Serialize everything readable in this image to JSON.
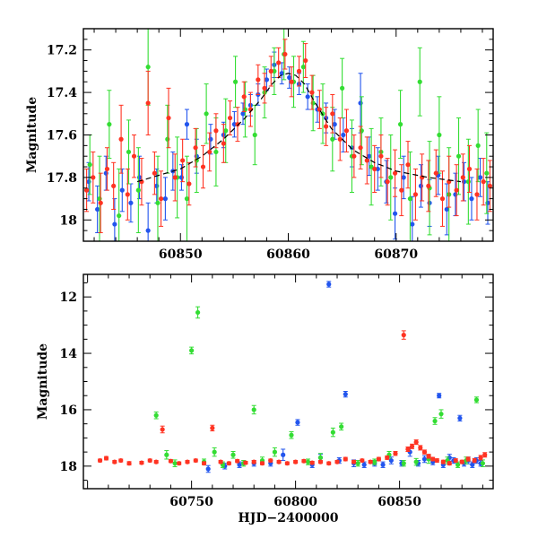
{
  "chart_data": [
    {
      "type": "scatter",
      "title": "",
      "xlabel": "",
      "ylabel": "Magnitude",
      "xlim": [
        60841,
        60879
      ],
      "ylim": [
        18.1,
        17.1
      ],
      "y_inverted": true,
      "grid": false,
      "xticks": [
        60850,
        60860,
        60870
      ],
      "yticks": [
        17.2,
        17.4,
        17.6,
        17.8,
        18
      ],
      "ytick_labels": [
        "17.2",
        "17.4",
        "17.6",
        "17.8",
        "18"
      ],
      "model_curve": {
        "style": "dashed",
        "color": "#000000",
        "x": [
          60846,
          60850,
          60852,
          60854,
          60856,
          60857.5,
          60858.5,
          60859.3,
          60860,
          60860.7,
          60861.5,
          60862.5,
          60864,
          60866,
          60868,
          60870,
          60873,
          60876
        ],
        "y": [
          17.82,
          17.76,
          17.7,
          17.62,
          17.52,
          17.43,
          17.36,
          17.32,
          17.31,
          17.32,
          17.36,
          17.45,
          17.57,
          17.67,
          17.73,
          17.77,
          17.8,
          17.82
        ]
      },
      "series": [
        {
          "color": "#2255ee",
          "x": [
            60841.5,
            60842.3,
            60843.1,
            60843.9,
            60844.6,
            60845.4,
            60846.2,
            60847,
            60847.8,
            60848.6,
            60849.3,
            60850.1,
            60850.6,
            60851.5,
            60852.8,
            60854,
            60855,
            60855.8,
            60856.5,
            60857.2,
            60858,
            60858.7,
            60859.4,
            60860.1,
            60861,
            60861.8,
            60862.7,
            60863.5,
            60864.3,
            60865.1,
            60865.9,
            60866.7,
            60867.5,
            60868.3,
            60869.1,
            60869.9,
            60870.7,
            60871.5,
            60872.3,
            60873.1,
            60873.9,
            60874.7,
            60875.5,
            60876.3,
            60877,
            60877.8,
            60878.5
          ],
          "y": [
            17.82,
            17.95,
            17.78,
            18.02,
            17.86,
            17.92,
            17.8,
            18.05,
            17.84,
            17.9,
            17.77,
            17.8,
            17.55,
            17.7,
            17.62,
            17.6,
            17.55,
            17.5,
            17.46,
            17.41,
            17.34,
            17.27,
            17.31,
            17.33,
            17.36,
            17.42,
            17.48,
            17.52,
            17.55,
            17.6,
            17.66,
            17.45,
            17.7,
            17.76,
            17.82,
            17.97,
            17.8,
            18.02,
            17.84,
            17.92,
            17.79,
            17.95,
            17.88,
            17.82,
            17.9,
            17.8,
            17.92
          ],
          "err": [
            0.09,
            0.11,
            0.08,
            0.12,
            0.1,
            0.09,
            0.1,
            0.13,
            0.08,
            0.1,
            0.09,
            0.06,
            0.07,
            0.08,
            0.07,
            0.06,
            0.06,
            0.05,
            0.05,
            0.05,
            0.05,
            0.06,
            0.05,
            0.05,
            0.05,
            0.06,
            0.06,
            0.07,
            0.07,
            0.08,
            0.09,
            0.14,
            0.09,
            0.1,
            0.1,
            0.12,
            0.1,
            0.13,
            0.1,
            0.11,
            0.09,
            0.12,
            0.1,
            0.09,
            0.1,
            0.09,
            0.1
          ]
        },
        {
          "color": "#33dd33",
          "x": [
            60841.6,
            60842.5,
            60843.4,
            60844.3,
            60845.2,
            60846.1,
            60847,
            60847.9,
            60848.8,
            60849.7,
            60850.6,
            60851.5,
            60852.4,
            60853.3,
            60854.2,
            60855.1,
            60856,
            60856.9,
            60857.8,
            60858.7,
            60859.6,
            60860.5,
            60861.4,
            60862.3,
            60863.2,
            60864.1,
            60865,
            60865.9,
            60866.8,
            60867.7,
            60868.6,
            60869.5,
            60870.4,
            60871.3,
            60872.2,
            60873.1,
            60874,
            60874.9,
            60875.8,
            60876.7,
            60877.6,
            60878.4
          ],
          "y": [
            17.74,
            17.9,
            17.55,
            17.98,
            17.68,
            17.86,
            17.28,
            17.92,
            17.62,
            17.8,
            17.9,
            17.72,
            17.5,
            17.68,
            17.58,
            17.35,
            17.48,
            17.6,
            17.4,
            17.3,
            17.22,
            17.35,
            17.28,
            17.45,
            17.5,
            17.62,
            17.38,
            17.7,
            17.58,
            17.75,
            17.68,
            17.8,
            17.55,
            17.9,
            17.35,
            17.85,
            17.6,
            17.88,
            17.7,
            17.82,
            17.65,
            17.78
          ],
          "err": [
            0.14,
            0.2,
            0.16,
            0.22,
            0.15,
            0.2,
            0.18,
            0.22,
            0.16,
            0.19,
            0.2,
            0.15,
            0.14,
            0.16,
            0.15,
            0.12,
            0.13,
            0.14,
            0.12,
            0.11,
            0.12,
            0.12,
            0.12,
            0.13,
            0.14,
            0.15,
            0.14,
            0.17,
            0.16,
            0.18,
            0.16,
            0.2,
            0.16,
            0.22,
            0.16,
            0.22,
            0.18,
            0.22,
            0.18,
            0.2,
            0.17,
            0.19
          ]
        },
        {
          "color": "#ff3322",
          "x": [
            60841.3,
            60841.9,
            60842.6,
            60843.2,
            60843.8,
            60844.5,
            60845.1,
            60845.7,
            60846.4,
            60847,
            60847.6,
            60848.2,
            60848.9,
            60849.5,
            60850.2,
            60850.8,
            60851.4,
            60852.1,
            60852.7,
            60853.3,
            60854,
            60854.6,
            60855.3,
            60855.9,
            60856.5,
            60857.2,
            60857.8,
            60858.4,
            60859.1,
            60859.7,
            60860.3,
            60861,
            60861.6,
            60862.2,
            60862.9,
            60863.5,
            60864.1,
            60864.8,
            60865.4,
            60866.1,
            60866.7,
            60867.3,
            60868,
            60868.6,
            60869.2,
            60869.9,
            60870.5,
            60871.1,
            60871.8,
            60872.4,
            60873,
            60873.7,
            60874.3,
            60874.9,
            60875.6,
            60876.2,
            60876.8,
            60877.5,
            60878.1,
            60878.7
          ],
          "y": [
            17.86,
            17.8,
            17.92,
            17.76,
            17.84,
            17.62,
            17.88,
            17.7,
            17.82,
            17.45,
            17.78,
            17.9,
            17.52,
            17.8,
            17.72,
            17.83,
            17.66,
            17.75,
            17.68,
            17.58,
            17.64,
            17.52,
            17.55,
            17.42,
            17.48,
            17.34,
            17.38,
            17.3,
            17.26,
            17.22,
            17.35,
            17.3,
            17.25,
            17.4,
            17.48,
            17.56,
            17.5,
            17.62,
            17.58,
            17.7,
            17.66,
            17.72,
            17.76,
            17.7,
            17.82,
            17.78,
            17.86,
            17.74,
            17.88,
            17.8,
            17.84,
            17.78,
            17.9,
            17.82,
            17.86,
            17.8,
            17.76,
            17.88,
            17.82,
            17.84
          ],
          "err": [
            0.1,
            0.12,
            0.14,
            0.1,
            0.11,
            0.16,
            0.12,
            0.1,
            0.11,
            0.15,
            0.1,
            0.13,
            0.14,
            0.11,
            0.1,
            0.1,
            0.09,
            0.1,
            0.09,
            0.08,
            0.09,
            0.08,
            0.08,
            0.07,
            0.08,
            0.07,
            0.07,
            0.07,
            0.07,
            0.07,
            0.07,
            0.07,
            0.08,
            0.08,
            0.09,
            0.09,
            0.09,
            0.1,
            0.1,
            0.1,
            0.1,
            0.11,
            0.11,
            0.1,
            0.11,
            0.11,
            0.12,
            0.11,
            0.12,
            0.11,
            0.12,
            0.11,
            0.13,
            0.12,
            0.12,
            0.11,
            0.11,
            0.12,
            0.11,
            0.12
          ]
        }
      ]
    },
    {
      "type": "scatter",
      "title": "",
      "xlabel": "HJD−2400000",
      "ylabel": "Magnitude",
      "xlim": [
        60698,
        60895
      ],
      "ylim": [
        18.8,
        11.2
      ],
      "y_inverted": true,
      "grid": false,
      "xticks": [
        60750,
        60800,
        60850
      ],
      "yticks": [
        12,
        14,
        16,
        18
      ],
      "ytick_labels": [
        "12",
        "14",
        "16",
        "18"
      ],
      "series": [
        {
          "color": "#2255ee",
          "x": [
            60758,
            60766,
            60773,
            60780,
            60788,
            60794,
            60801,
            60808,
            60812,
            60816,
            60821,
            60824,
            60828,
            60833,
            60838,
            60842,
            60846,
            60851,
            60855,
            60859,
            60862,
            60866,
            60869,
            60871,
            60874,
            60876,
            60879,
            60881,
            60883,
            60885,
            60887,
            60889
          ],
          "y": [
            18.1,
            18.0,
            17.95,
            17.9,
            17.9,
            17.6,
            16.45,
            17.95,
            17.7,
            11.55,
            17.8,
            15.45,
            17.9,
            17.95,
            17.9,
            17.95,
            17.8,
            17.9,
            17.5,
            17.9,
            17.75,
            17.85,
            15.5,
            17.95,
            17.7,
            17.8,
            16.3,
            17.9,
            17.8,
            17.95,
            17.8,
            17.9
          ],
          "err": [
            0.12,
            0.1,
            0.1,
            0.1,
            0.1,
            0.2,
            0.1,
            0.1,
            0.12,
            0.1,
            0.1,
            0.1,
            0.12,
            0.1,
            0.1,
            0.1,
            0.12,
            0.1,
            0.15,
            0.1,
            0.12,
            0.1,
            0.08,
            0.1,
            0.12,
            0.1,
            0.1,
            0.1,
            0.12,
            0.1,
            0.1,
            0.1
          ]
        },
        {
          "color": "#33dd33",
          "x": [
            60733,
            60738,
            60742,
            60750,
            60753,
            60756,
            60761,
            60765,
            60770,
            60775,
            60780,
            60784,
            60790,
            60798,
            60806,
            60812,
            60818,
            60822,
            60830,
            60838,
            60845,
            60852,
            60858,
            60864,
            60867,
            60870,
            60873,
            60878,
            60882,
            60887,
            60890
          ],
          "y": [
            16.2,
            17.6,
            17.9,
            13.9,
            12.55,
            17.85,
            17.5,
            17.95,
            17.6,
            17.9,
            16.0,
            17.8,
            17.5,
            16.9,
            17.85,
            17.7,
            16.8,
            16.6,
            17.9,
            17.85,
            17.6,
            17.9,
            17.85,
            17.75,
            16.4,
            16.15,
            17.8,
            17.95,
            17.8,
            15.65,
            17.9
          ],
          "err": [
            0.12,
            0.15,
            0.12,
            0.12,
            0.2,
            0.1,
            0.15,
            0.1,
            0.12,
            0.1,
            0.15,
            0.12,
            0.15,
            0.12,
            0.1,
            0.15,
            0.15,
            0.12,
            0.1,
            0.1,
            0.12,
            0.1,
            0.12,
            0.15,
            0.12,
            0.15,
            0.12,
            0.1,
            0.12,
            0.1,
            0.12
          ]
        },
        {
          "color": "#ff3322",
          "x": [
            60706,
            60709,
            60713,
            60716,
            60720,
            60726,
            60730,
            60733,
            60736,
            60740,
            60744,
            60748,
            60752,
            60756,
            60760,
            60764,
            60768,
            60772,
            60776,
            60780,
            60784,
            60788,
            60792,
            60796,
            60800,
            60804,
            60808,
            60812,
            60816,
            60820,
            60824,
            60828,
            60832,
            60836,
            60840,
            60844,
            60848,
            60852,
            60854,
            60856,
            60858,
            60860,
            60862,
            60864,
            60866,
            60868,
            60871,
            60874,
            60877,
            60880,
            60883,
            60886,
            60889,
            60891
          ],
          "y": [
            17.8,
            17.72,
            17.85,
            17.8,
            17.9,
            17.88,
            17.8,
            17.85,
            16.7,
            17.82,
            17.9,
            17.85,
            17.8,
            17.9,
            16.65,
            17.85,
            17.9,
            17.82,
            17.88,
            17.85,
            17.9,
            17.8,
            17.85,
            17.9,
            17.85,
            17.82,
            17.88,
            17.85,
            17.9,
            17.85,
            17.75,
            17.85,
            17.8,
            17.85,
            17.75,
            17.7,
            17.55,
            13.35,
            17.4,
            17.3,
            17.15,
            17.35,
            17.5,
            17.65,
            17.75,
            17.8,
            17.85,
            17.9,
            17.8,
            17.85,
            17.75,
            17.8,
            17.7,
            17.6
          ],
          "err": [
            0.05,
            0.06,
            0.05,
            0.05,
            0.06,
            0.05,
            0.05,
            0.05,
            0.12,
            0.05,
            0.05,
            0.05,
            0.05,
            0.05,
            0.1,
            0.05,
            0.05,
            0.05,
            0.05,
            0.05,
            0.05,
            0.05,
            0.05,
            0.05,
            0.05,
            0.05,
            0.05,
            0.05,
            0.05,
            0.05,
            0.06,
            0.05,
            0.05,
            0.05,
            0.06,
            0.06,
            0.07,
            0.15,
            0.08,
            0.08,
            0.08,
            0.08,
            0.07,
            0.07,
            0.06,
            0.06,
            0.06,
            0.06,
            0.06,
            0.06,
            0.07,
            0.07,
            0.08,
            0.08
          ]
        }
      ]
    }
  ]
}
